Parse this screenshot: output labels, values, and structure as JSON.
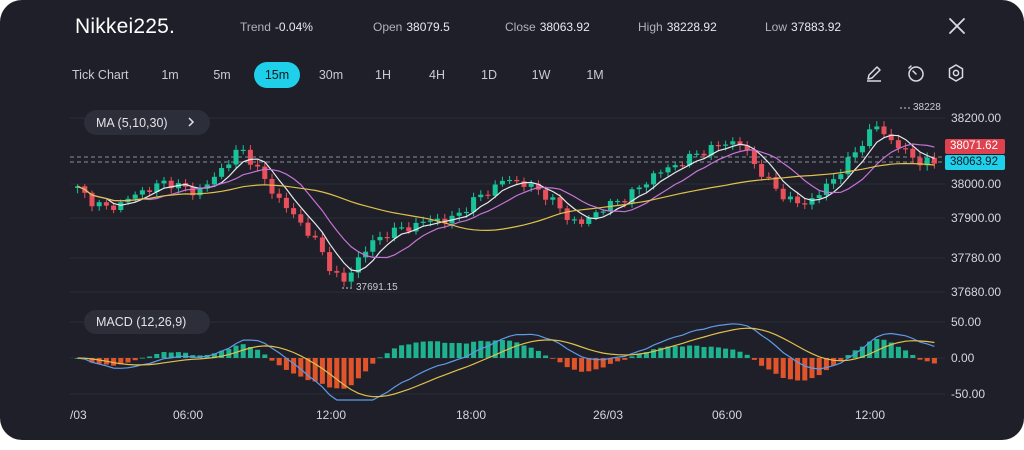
{
  "header": {
    "symbol": "Nikkei225.",
    "trend_label": "Trend",
    "trend_value": "-0.04%",
    "open_label": "Open",
    "open_value": "38079.5",
    "close_label": "Close",
    "close_value": "38063.92",
    "high_label": "High",
    "high_value": "38228.92",
    "low_label": "Low",
    "low_value": "37883.92"
  },
  "timeframes": {
    "tick_label": "Tick Chart",
    "items": [
      "1m",
      "5m",
      "15m",
      "30m",
      "1H",
      "4H",
      "1D",
      "1W",
      "1M"
    ],
    "active": "15m"
  },
  "toolbar": {
    "icons": [
      "draw-pencil-icon",
      "timer-icon",
      "settings-gear-icon",
      "close-icon"
    ]
  },
  "indicators": {
    "ma_label": "MA (5,10,30)",
    "macd_label": "MACD (12,26,9)"
  },
  "price_axis": {
    "ticks": [
      "38200.00",
      "38000.00",
      "37900.00",
      "37780.00",
      "37680.00"
    ],
    "tag_red": "38071.62",
    "tag_cyan": "38063.92"
  },
  "macd_axis": {
    "ticks": [
      "50.00",
      "0.00",
      "-50.00"
    ]
  },
  "time_axis": {
    "labels": [
      "/03",
      "06:00",
      "12:00",
      "18:00",
      "26/03",
      "06:00",
      "12:00"
    ]
  },
  "annotations": {
    "max_label": "38228",
    "min_label": "37691.15"
  },
  "colors": {
    "up": "#19c39a",
    "down": "#e8505b",
    "accent": "#1fd0ea",
    "ma5": "#e7e9ef",
    "ma10": "#c773d8",
    "ma30": "#e0c14c",
    "macd_hist_up": "#1db38f",
    "macd_hist_down": "#e0542c",
    "dif": "#5f9ae8",
    "dea": "#e0c14c"
  },
  "chart_data": {
    "type": "candlestick",
    "y_range": [
      37640,
      38270
    ],
    "candles": [],
    "ohlc_anchor_closes": [
      37990,
      37950,
      37930,
      37945,
      37975,
      37990,
      38010,
      37995,
      37975,
      38010,
      38060,
      38110,
      38060,
      37990,
      37940,
      37890,
      37840,
      37760,
      37705,
      37780,
      37830,
      37855,
      37870,
      37880,
      37900,
      37890,
      37920,
      37960,
      37985,
      38020,
      38005,
      37990,
      37960,
      37910,
      37880,
      37915,
      37940,
      37960,
      37990,
      38030,
      38050,
      38070,
      38095,
      38110,
      38130,
      38120,
      38050,
      38000,
      37960,
      37940,
      37965,
      38010,
      38060,
      38120,
      38180,
      38135,
      38100,
      38070,
      38065
    ],
    "macd_note": "histogram and signal lines recreated from visible shape"
  }
}
